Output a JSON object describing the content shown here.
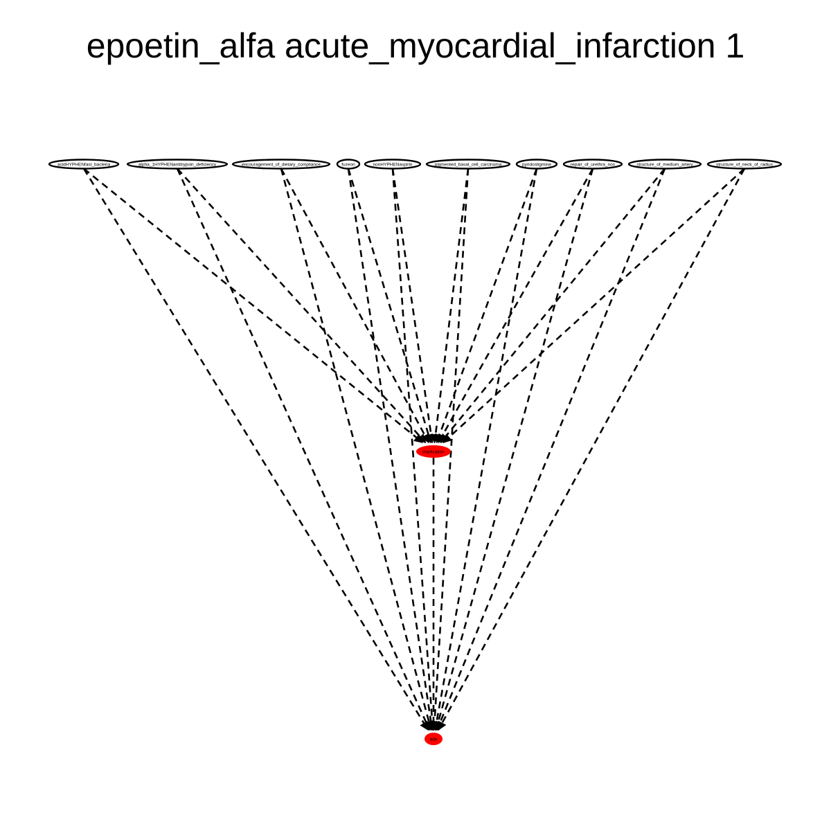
{
  "title": "epoetin_alfa acute_myocardial_infarction 1",
  "colors": {
    "highlight_node": "#ff0000",
    "default_node": "#ffffff",
    "edge": "#000000"
  },
  "nodes": [
    {
      "id": "n0",
      "label": "acidHYPHENfast_bacteria",
      "highlight": false
    },
    {
      "id": "n1",
      "label": "alpha_1HYPHENantitrypsin_deficiency",
      "highlight": false
    },
    {
      "id": "n2",
      "label": "encouragement_of_dietary_compliance",
      "highlight": false
    },
    {
      "id": "n3",
      "label": "fuzeon",
      "highlight": false
    },
    {
      "id": "n4",
      "label": "nonHYPHENaspirin",
      "highlight": false
    },
    {
      "id": "n5",
      "label": "pigmented_basal_cell_carcinoma",
      "highlight": false
    },
    {
      "id": "n6",
      "label": "pyridostigmine",
      "highlight": false
    },
    {
      "id": "n7",
      "label": "repair_of_urethra_nos",
      "highlight": false
    },
    {
      "id": "n8",
      "label": "structure_of_medium_artery",
      "highlight": false
    },
    {
      "id": "n9",
      "label": "structure_of_neck_of_radius",
      "highlight": false
    },
    {
      "id": "med",
      "label": "medication",
      "highlight": true
    },
    {
      "id": "ade",
      "label": "ade",
      "highlight": true
    }
  ],
  "edges": [
    {
      "from": "n0",
      "to": "med",
      "style": "dashed"
    },
    {
      "from": "n0",
      "to": "ade",
      "style": "dashed"
    },
    {
      "from": "n1",
      "to": "med",
      "style": "dashed"
    },
    {
      "from": "n1",
      "to": "ade",
      "style": "dashed"
    },
    {
      "from": "n2",
      "to": "med",
      "style": "dashed"
    },
    {
      "from": "n2",
      "to": "ade",
      "style": "dashed"
    },
    {
      "from": "n3",
      "to": "med",
      "style": "dashed"
    },
    {
      "from": "n3",
      "to": "ade",
      "style": "dashed"
    },
    {
      "from": "n4",
      "to": "med",
      "style": "dashed"
    },
    {
      "from": "n4",
      "to": "ade",
      "style": "dashed"
    },
    {
      "from": "n5",
      "to": "med",
      "style": "dashed"
    },
    {
      "from": "n5",
      "to": "ade",
      "style": "dashed"
    },
    {
      "from": "n6",
      "to": "med",
      "style": "dashed"
    },
    {
      "from": "n6",
      "to": "ade",
      "style": "dashed"
    },
    {
      "from": "n7",
      "to": "med",
      "style": "dashed"
    },
    {
      "from": "n7",
      "to": "ade",
      "style": "dashed"
    },
    {
      "from": "n8",
      "to": "med",
      "style": "dashed"
    },
    {
      "from": "n8",
      "to": "ade",
      "style": "dashed"
    },
    {
      "from": "n9",
      "to": "med",
      "style": "dashed"
    },
    {
      "from": "n9",
      "to": "ade",
      "style": "dashed"
    },
    {
      "from": "med",
      "to": "ade",
      "style": "dashed"
    }
  ]
}
